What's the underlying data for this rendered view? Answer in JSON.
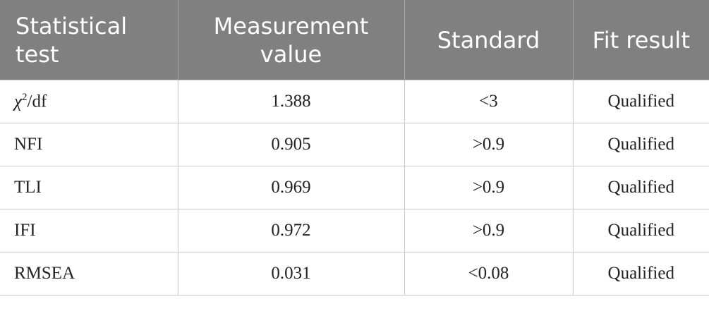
{
  "table": {
    "header": [
      "Statistical test",
      "Measurement value",
      "Standard",
      "Fit result"
    ],
    "rows": [
      [
        {
          "base": "χ",
          "sup": "2",
          "rest": "/df"
        },
        "1.388",
        "<3",
        "Qualified"
      ],
      [
        "NFI",
        "0.905",
        ">0.9",
        "Qualified"
      ],
      [
        "TLI",
        "0.969",
        ">0.9",
        "Qualified"
      ],
      [
        "IFI",
        "0.972",
        ">0.9",
        "Qualified"
      ],
      [
        "RMSEA",
        "0.031",
        "<0.08",
        "Qualified"
      ]
    ]
  }
}
